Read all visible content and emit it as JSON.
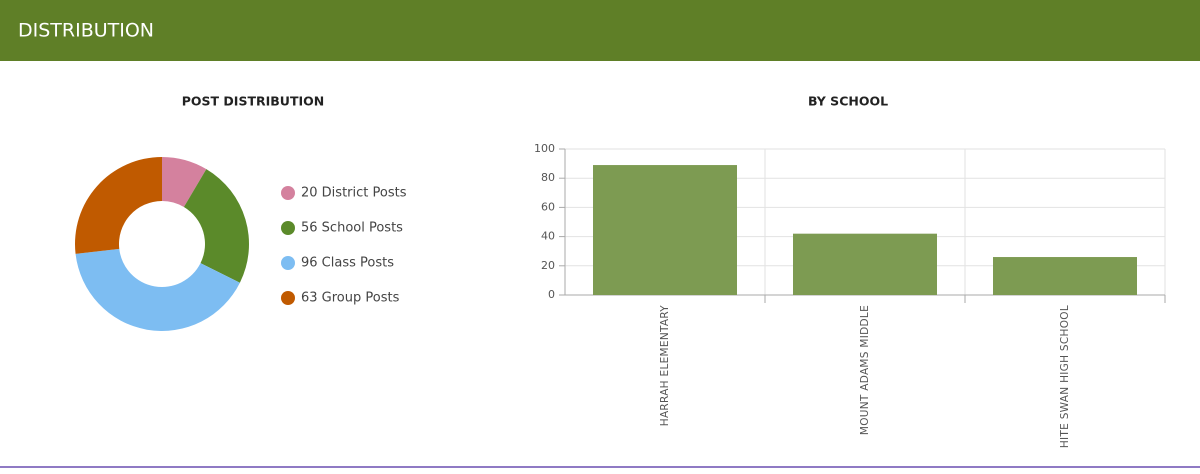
{
  "header": {
    "title": "DISTRIBUTION"
  },
  "chart_data": [
    {
      "type": "pie",
      "title": "POST DISTRIBUTION",
      "categories": [
        "20 District Posts",
        "56 School Posts",
        "96 Class Posts",
        "63 Group Posts"
      ],
      "values": [
        20,
        56,
        96,
        63
      ],
      "colors": [
        "#d4819e",
        "#5b8a2a",
        "#7dbdf2",
        "#c05a00"
      ]
    },
    {
      "type": "bar",
      "title": "BY SCHOOL",
      "categories": [
        "HARRAH ELEMENTARY",
        "MOUNT ADAMS MIDDLE",
        "WHITE SWAN HIGH SCHOOL"
      ],
      "values": [
        89,
        42,
        26
      ],
      "color": "#7d9b52",
      "ylim": [
        0,
        100
      ],
      "yticks": [
        0,
        20,
        40,
        60,
        80,
        100
      ],
      "grid": true
    }
  ]
}
